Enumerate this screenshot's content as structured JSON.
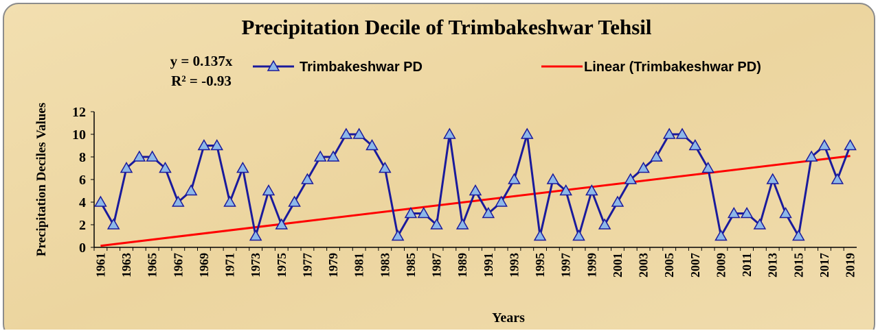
{
  "chart_data": {
    "type": "line",
    "title": "Precipitation Decile of Trimbakeshwar Tehsil",
    "x_label": "Years",
    "y_label": "Precipitation Deciles Values",
    "categories": [
      "1961",
      null,
      "1963",
      null,
      "1965",
      null,
      "1967",
      null,
      "1969",
      null,
      "1971",
      null,
      "1973",
      null,
      "1975",
      null,
      "1977",
      null,
      "1979",
      null,
      "1981",
      null,
      "1983",
      null,
      "1985",
      null,
      "1987",
      null,
      "1989",
      null,
      "1991",
      null,
      "1993",
      null,
      "1995",
      null,
      "1997",
      null,
      "1999",
      null,
      "2001",
      null,
      "2003",
      null,
      "2005",
      null,
      "2007",
      null,
      "2009",
      null,
      "2011",
      null,
      "2013",
      null,
      "2015",
      null,
      "2017",
      null,
      "2019"
    ],
    "series": [
      {
        "name": "Trimbakeshwar PD",
        "color": "#1a1a9c",
        "marker_color": "#8db8e8",
        "values": [
          4,
          2,
          7,
          8,
          8,
          7,
          4,
          5,
          9,
          9,
          4,
          7,
          1,
          5,
          2,
          4,
          6,
          8,
          8,
          10,
          10,
          9,
          7,
          1,
          3,
          3,
          2,
          10,
          2,
          5,
          3,
          4,
          6,
          10,
          1,
          6,
          5,
          1,
          5,
          2,
          4,
          6,
          7,
          8,
          10,
          10,
          9,
          7,
          1,
          3,
          3,
          2,
          6,
          3,
          1,
          8,
          9,
          6,
          9
        ]
      }
    ],
    "trendline": {
      "name": "Linear (Trimbakeshwar PD)",
      "color": "#ff0000",
      "slope": 0.137,
      "equation": "y = 0.137x",
      "r2": "R² = -0.93"
    },
    "ylim": [
      0,
      12
    ],
    "yticks": [
      0,
      2,
      4,
      6,
      8,
      10,
      12
    ]
  }
}
